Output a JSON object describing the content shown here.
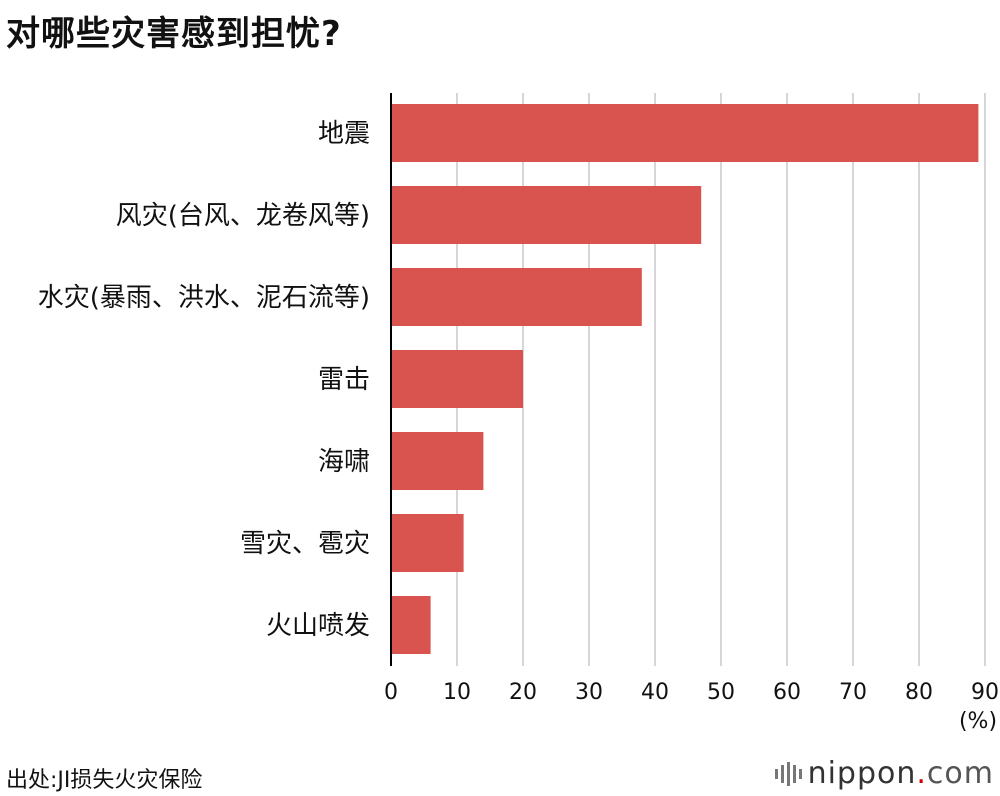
{
  "title": "对哪些灾害感到担忧?",
  "source": "出处:JI损失火灾保险",
  "brand": {
    "name": "nippon",
    "dot": ".",
    "suffix": "com",
    "icon": "nippon-logo-bars-icon"
  },
  "colors": {
    "bar": "#d9534f",
    "grid": "#c8c8c8",
    "axis": "#000000"
  },
  "chart_data": {
    "type": "bar",
    "orientation": "horizontal",
    "categories": [
      "地震",
      "风灾(台风、龙卷风等)",
      "水灾(暴雨、洪水、泥石流等)",
      "雷击",
      "海啸",
      "雪灾、雹灾",
      "火山喷发"
    ],
    "values": [
      89,
      47,
      38,
      20,
      14,
      11,
      6
    ],
    "xlim": [
      0,
      90
    ],
    "xticks": [
      0,
      10,
      20,
      30,
      40,
      50,
      60,
      70,
      80,
      90
    ],
    "xunit": "(%)",
    "grid": true
  }
}
